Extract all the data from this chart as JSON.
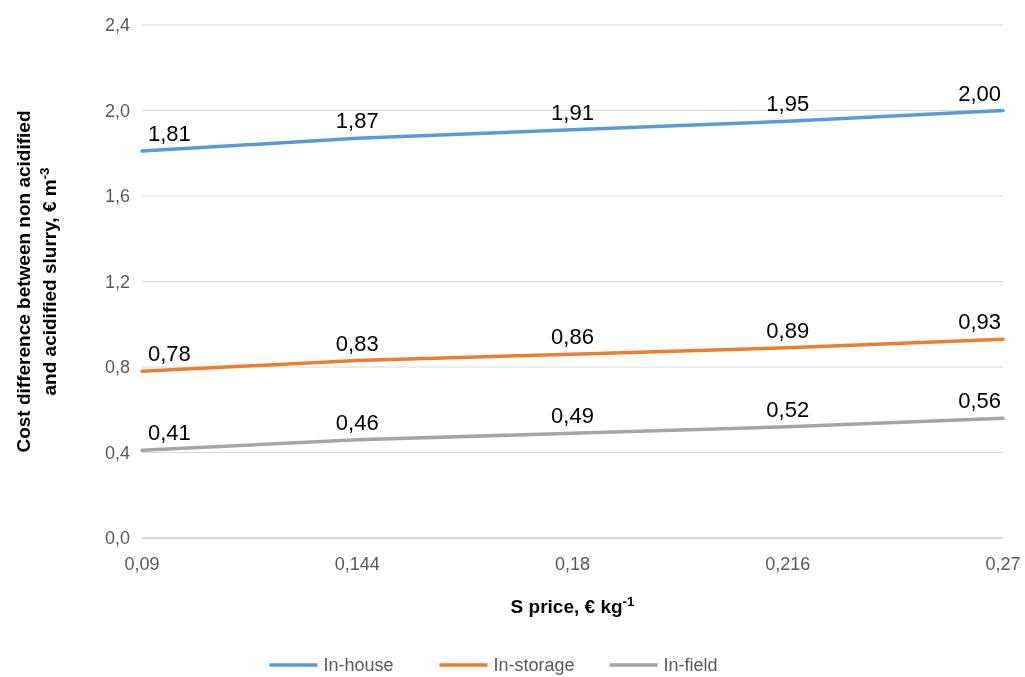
{
  "chart_data": {
    "type": "line",
    "xlabel": "S price, € kg$^{-1}$",
    "ylabel": "Cost difference between non acidified and acidified slurry, € m$^{-3}$",
    "categories": [
      "0,09",
      "0,144",
      "0,18",
      "0,216",
      "0,27"
    ],
    "series": [
      {
        "name": "In-house",
        "color": "#5b9bd5",
        "values": [
          1.81,
          1.87,
          1.91,
          1.95,
          2.0
        ],
        "value_labels": [
          "1,81",
          "1,87",
          "1,91",
          "1,95",
          "2,00"
        ]
      },
      {
        "name": "In-storage",
        "color": "#ed7d31",
        "values": [
          0.78,
          0.83,
          0.86,
          0.89,
          0.93
        ],
        "value_labels": [
          "0,78",
          "0,83",
          "0,86",
          "0,89",
          "0,93"
        ]
      },
      {
        "name": "In-field",
        "color": "#a5a5a5",
        "values": [
          0.41,
          0.46,
          0.49,
          0.52,
          0.56
        ],
        "value_labels": [
          "0,41",
          "0,46",
          "0,49",
          "0,52",
          "0,56"
        ]
      }
    ],
    "ylim": [
      0,
      2.4
    ],
    "yticks": [
      {
        "value": 0,
        "label": "0,0"
      },
      {
        "value": 0.4,
        "label": "0,4"
      },
      {
        "value": 0.8,
        "label": "0,8"
      },
      {
        "value": 1.2,
        "label": "1,2"
      },
      {
        "value": 1.6,
        "label": "1,6"
      },
      {
        "value": 2.0,
        "label": "2,0"
      },
      {
        "value": 2.4,
        "label": "2,4"
      }
    ],
    "grid": "y",
    "legend": "bottom",
    "marker": "none",
    "line_style": "solid"
  }
}
